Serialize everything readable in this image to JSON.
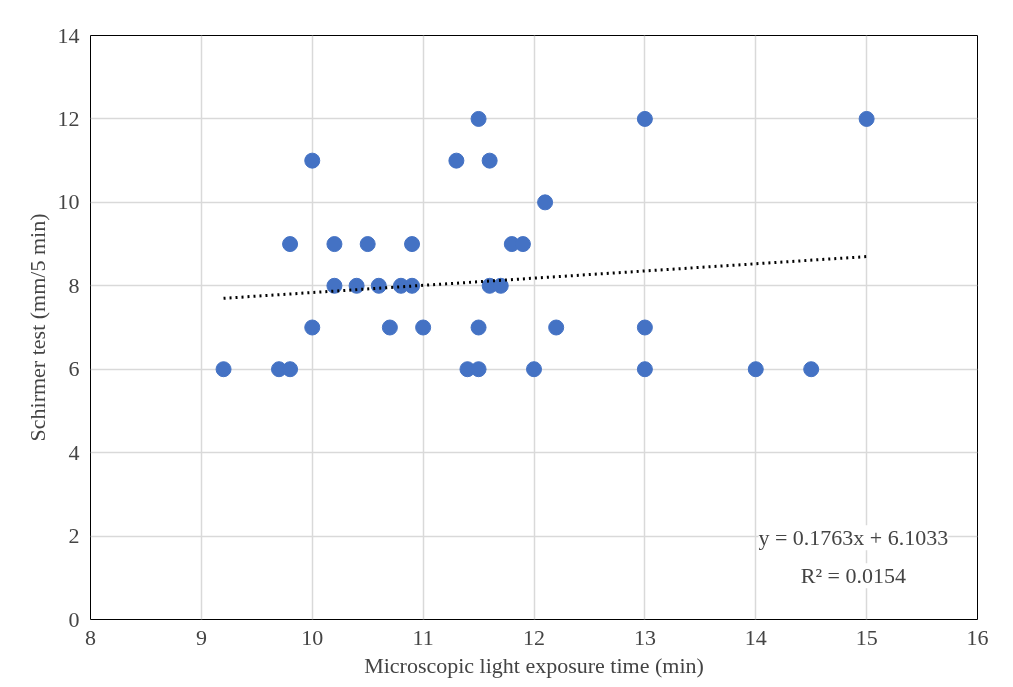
{
  "chart_data": {
    "type": "scatter",
    "xlabel": "Microscopic light exposure time (min)",
    "ylabel": "Schirmer test (mm/5 min)",
    "xlim": [
      8,
      16
    ],
    "xticks": [
      8,
      9,
      10,
      11,
      12,
      13,
      14,
      15,
      16
    ],
    "ylim": [
      0,
      14
    ],
    "yticks": [
      0,
      2,
      4,
      6,
      8,
      10,
      12,
      14
    ],
    "grid": true,
    "marker": "circle",
    "series": [
      {
        "color": "#4472c4",
        "x": [
          9.2,
          9.7,
          9.8,
          9.8,
          10,
          10,
          10.2,
          10.2,
          10.4,
          10.5,
          10.6,
          10.7,
          10.8,
          10.9,
          10.9,
          11,
          11.3,
          11.4,
          11.5,
          11.5,
          11.5,
          11.6,
          11.6,
          11.7,
          11.8,
          11.9,
          12,
          12.1,
          12.2,
          13,
          13,
          13,
          14,
          14.5,
          15
        ],
        "values": [
          6,
          6,
          6,
          9,
          11,
          7,
          9,
          8,
          8,
          9,
          8,
          7,
          8,
          9,
          8,
          7,
          11,
          6,
          12,
          7,
          6,
          11,
          8,
          8,
          9,
          9,
          6,
          10,
          7,
          12,
          7,
          6,
          6,
          6,
          12
        ]
      },
      {
        "type": "line",
        "color": "#000000",
        "line_style": "dotted",
        "marker": "none",
        "x": [
          9.2,
          15
        ],
        "values": [
          7.7,
          8.7
        ]
      }
    ],
    "annotations": [
      "y = 0.1763x + 6.1033",
      "R² = 0.0154"
    ]
  }
}
